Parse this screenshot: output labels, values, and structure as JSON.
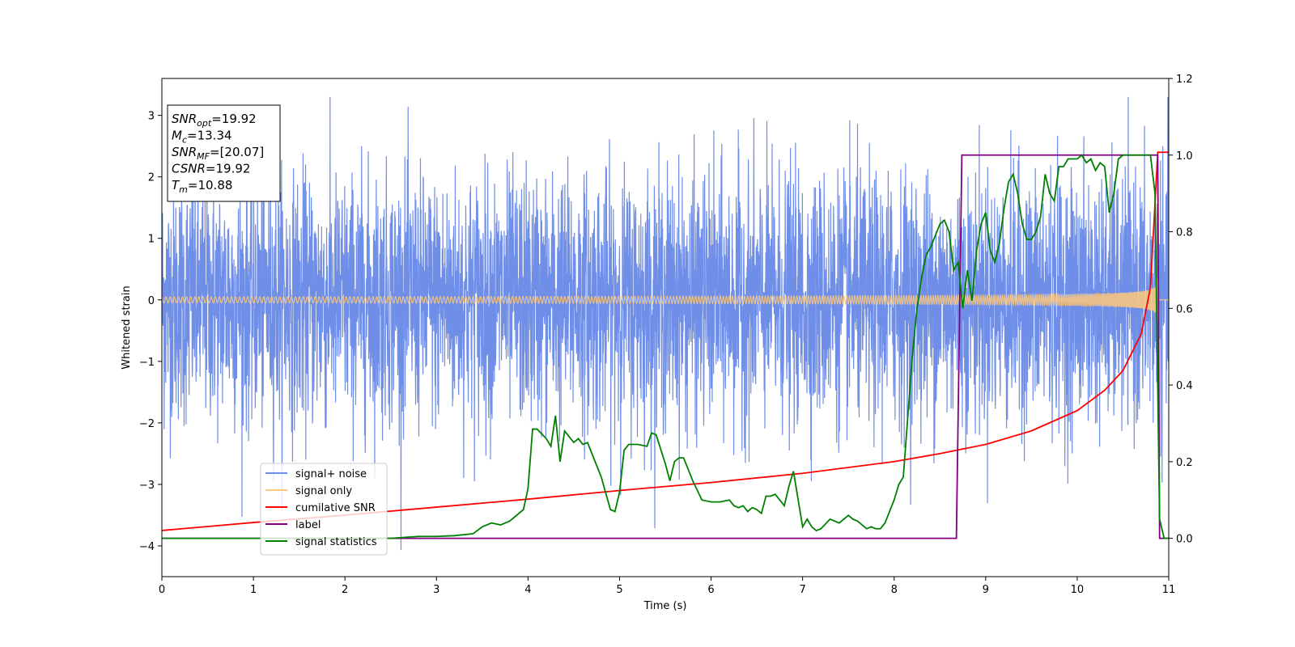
{
  "chart_data": {
    "type": "line",
    "xlabel": "Time (s)",
    "ylabel": "Whitened strain",
    "xlim": [
      0,
      11
    ],
    "ylim": [
      -4.5,
      3.6
    ],
    "y2lim": [
      -0.1,
      1.2
    ],
    "xticks": [
      0,
      1,
      2,
      3,
      4,
      5,
      6,
      7,
      8,
      9,
      10,
      11
    ],
    "yticks": [
      -4,
      -3,
      -2,
      -1,
      0,
      1,
      2,
      3
    ],
    "y2ticks": [
      0.0,
      0.2,
      0.4,
      0.6,
      0.8,
      1.0,
      1.2
    ],
    "grid": false,
    "legend_position": "lower-left",
    "info_box": {
      "position": "top-left",
      "lines": [
        {
          "main": "SNR",
          "sub": "opt",
          "value": "=19.92"
        },
        {
          "main": "M",
          "sub": "c",
          "value": "=13.34"
        },
        {
          "main": "SNR",
          "sub": "MF",
          "value": "=[20.07]"
        },
        {
          "main": "CSNR",
          "sub": "",
          "value": "=19.92"
        },
        {
          "main": "T",
          "sub": "m",
          "value": "=10.88"
        }
      ]
    },
    "series": [
      {
        "name": "signal+ noise",
        "color": "#6f8ee8",
        "axis": "left",
        "kind": "noise",
        "note_std": 1.0,
        "merger_time": 10.88
      },
      {
        "name": "signal only",
        "color": "#ffc97a",
        "axis": "left",
        "kind": "chirp",
        "amplitude_start": 0.05,
        "amplitude_peak": 2.65,
        "merger_time": 10.88
      },
      {
        "name": "cumilative SNR",
        "color": "#ff0000",
        "axis": "left",
        "x": [
          0,
          1,
          2,
          3,
          4,
          5,
          6,
          7,
          8,
          8.5,
          9,
          9.5,
          10,
          10.3,
          10.5,
          10.7,
          10.8,
          10.88,
          11
        ],
        "y": [
          -3.75,
          -3.62,
          -3.5,
          -3.37,
          -3.24,
          -3.1,
          -2.97,
          -2.82,
          -2.63,
          -2.5,
          -2.35,
          -2.13,
          -1.8,
          -1.47,
          -1.15,
          -0.55,
          0.2,
          2.4,
          2.4
        ]
      },
      {
        "name": "label",
        "color": "#800080",
        "axis": "right",
        "x": [
          0,
          8.68,
          8.74,
          10.88,
          10.9,
          11
        ],
        "y": [
          0,
          0,
          1,
          1,
          0,
          0
        ]
      },
      {
        "name": "signal statistics",
        "color": "#008000",
        "axis": "right",
        "x": [
          0,
          2.5,
          2.8,
          3.0,
          3.2,
          3.4,
          3.5,
          3.6,
          3.7,
          3.8,
          3.9,
          3.95,
          4.0,
          4.05,
          4.1,
          4.2,
          4.25,
          4.3,
          4.35,
          4.4,
          4.45,
          4.5,
          4.55,
          4.6,
          4.65,
          4.7,
          4.8,
          4.9,
          4.95,
          5.0,
          5.05,
          5.1,
          5.15,
          5.2,
          5.3,
          5.35,
          5.4,
          5.5,
          5.55,
          5.6,
          5.65,
          5.7,
          5.8,
          5.9,
          6.0,
          6.1,
          6.2,
          6.25,
          6.3,
          6.35,
          6.4,
          6.45,
          6.5,
          6.55,
          6.6,
          6.65,
          6.7,
          6.75,
          6.8,
          6.85,
          6.9,
          7.0,
          7.05,
          7.1,
          7.15,
          7.2,
          7.3,
          7.4,
          7.5,
          7.55,
          7.6,
          7.7,
          7.75,
          7.8,
          7.85,
          7.9,
          8.0,
          8.05,
          8.1,
          8.2,
          8.25,
          8.3,
          8.35,
          8.4,
          8.5,
          8.55,
          8.6,
          8.65,
          8.7,
          8.75,
          8.8,
          8.85,
          8.9,
          8.95,
          9.0,
          9.05,
          9.1,
          9.15,
          9.2,
          9.25,
          9.3,
          9.35,
          9.4,
          9.45,
          9.5,
          9.55,
          9.6,
          9.65,
          9.7,
          9.75,
          9.8,
          9.85,
          9.9,
          9.95,
          10.0,
          10.05,
          10.1,
          10.15,
          10.2,
          10.25,
          10.3,
          10.35,
          10.4,
          10.45,
          10.5,
          10.55,
          10.6,
          10.65,
          10.7,
          10.75,
          10.8,
          10.85,
          10.9,
          10.95,
          11.0
        ],
        "y": [
          0.0,
          0.0,
          0.005,
          0.005,
          0.007,
          0.012,
          0.03,
          0.04,
          0.035,
          0.045,
          0.065,
          0.075,
          0.13,
          0.285,
          0.285,
          0.26,
          0.24,
          0.32,
          0.2,
          0.28,
          0.265,
          0.25,
          0.26,
          0.245,
          0.25,
          0.22,
          0.16,
          0.075,
          0.07,
          0.12,
          0.23,
          0.245,
          0.245,
          0.245,
          0.24,
          0.275,
          0.27,
          0.195,
          0.15,
          0.2,
          0.21,
          0.21,
          0.15,
          0.1,
          0.095,
          0.095,
          0.1,
          0.085,
          0.08,
          0.085,
          0.07,
          0.08,
          0.075,
          0.065,
          0.11,
          0.11,
          0.115,
          0.1,
          0.085,
          0.135,
          0.175,
          0.03,
          0.05,
          0.03,
          0.02,
          0.025,
          0.05,
          0.04,
          0.06,
          0.05,
          0.045,
          0.025,
          0.03,
          0.025,
          0.025,
          0.04,
          0.1,
          0.14,
          0.16,
          0.48,
          0.6,
          0.68,
          0.74,
          0.76,
          0.82,
          0.83,
          0.8,
          0.7,
          0.72,
          0.6,
          0.7,
          0.62,
          0.75,
          0.82,
          0.85,
          0.75,
          0.72,
          0.77,
          0.86,
          0.93,
          0.95,
          0.9,
          0.82,
          0.78,
          0.78,
          0.8,
          0.84,
          0.95,
          0.9,
          0.88,
          0.97,
          0.97,
          0.99,
          0.99,
          0.99,
          1.0,
          0.98,
          0.99,
          0.96,
          0.98,
          0.97,
          0.85,
          0.9,
          0.99,
          1.0,
          1.0,
          1.0,
          1.0,
          1.0,
          1.0,
          1.0,
          0.9,
          0.05,
          0.0,
          0.0
        ]
      }
    ]
  }
}
